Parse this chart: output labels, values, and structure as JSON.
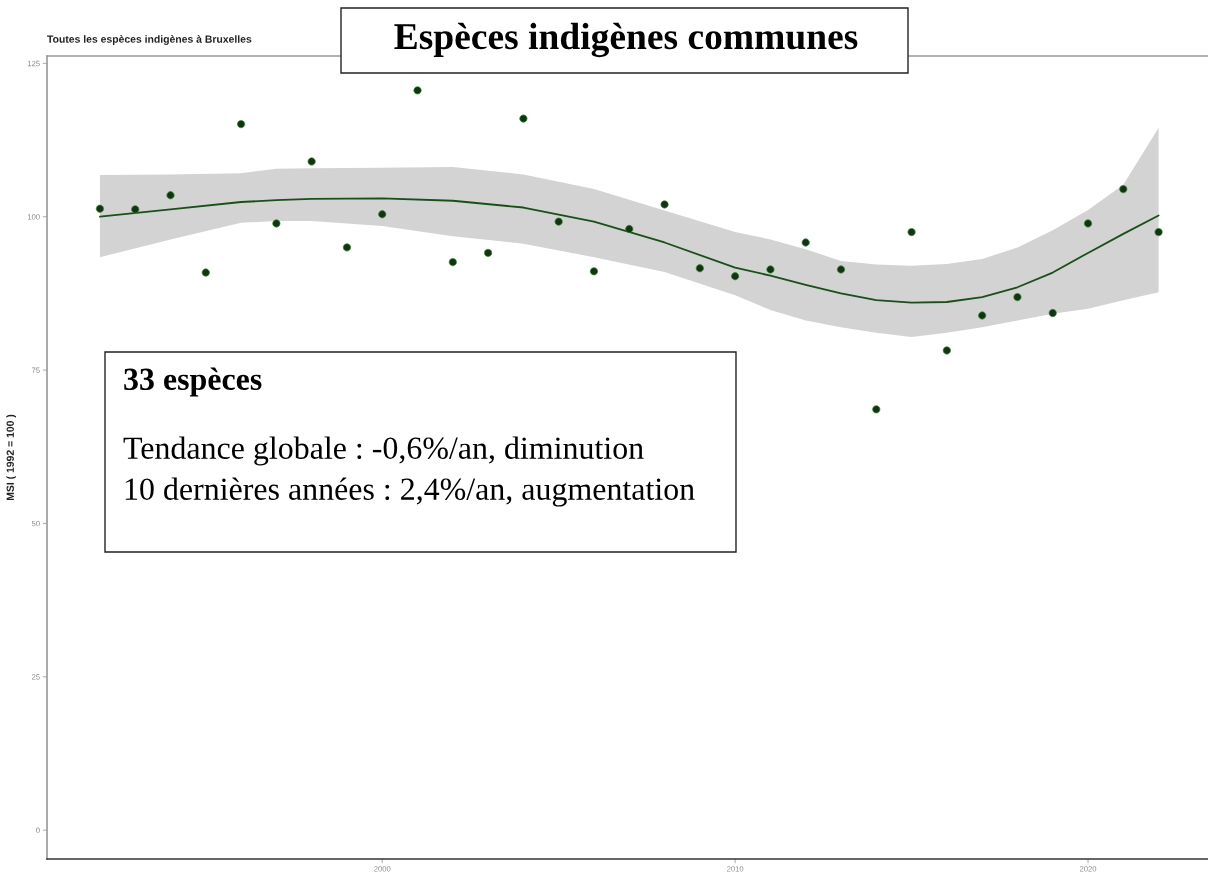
{
  "chart_data": {
    "type": "scatter",
    "title": "Espèces indigènes communes",
    "subtitle": "Toutes les espèces indigènes à Bruxelles",
    "ylabel": "MSI ( 1992 = 100 )",
    "annotations": [
      "33 espèces",
      "Tendance globale : -0,6%/an, diminution",
      "10 dernières années : 2,4%/an, augmentation"
    ],
    "x": [
      1992,
      1993,
      1994,
      1995,
      1996,
      1997,
      1998,
      1999,
      2000,
      2001,
      2002,
      2003,
      2004,
      2005,
      2006,
      2007,
      2008,
      2009,
      2010,
      2011,
      2012,
      2013,
      2014,
      2015,
      2016,
      2017,
      2018,
      2019,
      2020,
      2021,
      2022
    ],
    "series": [
      {
        "color": "#143214",
        "marker": "circle",
        "values": [
          101.3,
          101.2,
          103.5,
          90.9,
          115.1,
          98.9,
          109.0,
          95.0,
          100.4,
          120.6,
          92.6,
          94.1,
          116.0,
          99.2,
          91.1,
          98.0,
          102.0,
          91.6,
          90.3,
          91.4,
          95.8,
          91.4,
          68.6,
          97.5,
          78.2,
          83.9,
          86.9,
          84.3,
          98.9,
          104.5,
          97.5
        ]
      },
      {
        "type": "line",
        "color": "#1a4f1a",
        "line_style": "solid",
        "x": [
          1992,
          1994,
          1996,
          1997,
          1998,
          2000,
          2002,
          2004,
          2006,
          2008,
          2010,
          2011,
          2012,
          2013,
          2014,
          2015,
          2016,
          2017,
          2018,
          2019,
          2020,
          2021,
          2022
        ],
        "values": [
          100.0,
          101.2,
          102.4,
          102.7,
          102.9,
          103.0,
          102.6,
          101.5,
          99.2,
          95.8,
          91.7,
          90.4,
          88.9,
          87.5,
          86.4,
          86.0,
          86.1,
          86.9,
          88.5,
          90.9,
          94.1,
          97.2,
          100.2
        ],
        "lower": [
          93.4,
          96.3,
          99.0,
          99.3,
          99.3,
          98.5,
          96.8,
          95.6,
          93.4,
          91.0,
          87.2,
          84.8,
          83.1,
          82.0,
          81.1,
          80.4,
          81.1,
          82.0,
          83.1,
          84.2,
          85.0,
          86.4,
          87.7
        ],
        "upper": [
          106.8,
          106.9,
          107.1,
          107.8,
          107.9,
          108.0,
          108.1,
          106.9,
          104.5,
          101.0,
          97.5,
          96.3,
          94.7,
          92.8,
          92.2,
          92.0,
          92.3,
          93.1,
          95.0,
          97.8,
          101.1,
          105.2,
          114.5
        ]
      }
    ],
    "xlim": [
      1990.5,
      2023.4
    ],
    "xticks": [
      2000,
      2010,
      2020
    ],
    "ylim": [
      -4.7,
      126.2
    ],
    "yticks": [
      0,
      25,
      50,
      75,
      100,
      125
    ]
  }
}
